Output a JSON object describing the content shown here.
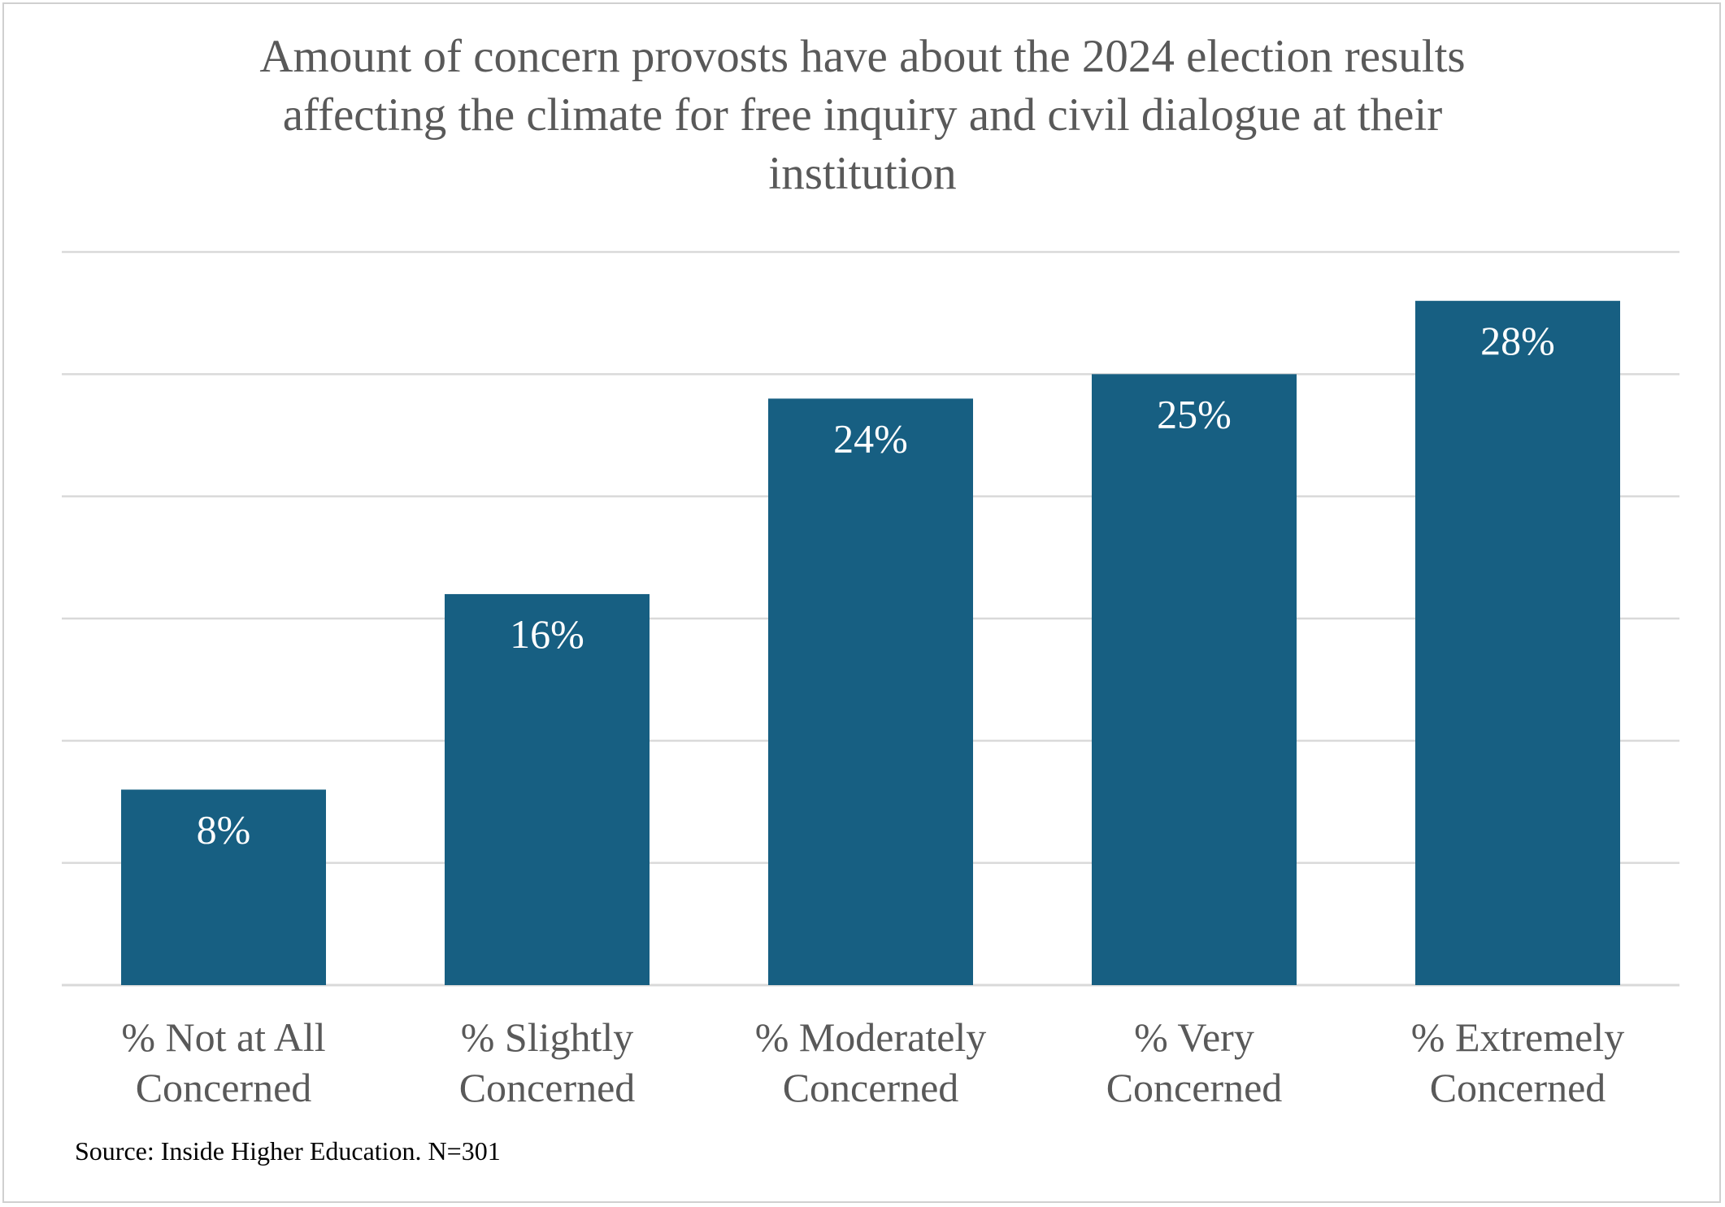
{
  "chart_data": {
    "type": "bar",
    "title": "Amount of concern provosts have about the 2024 election results affecting the climate for free inquiry and civil dialogue at their institution",
    "title_lines": [
      "Amount of concern provosts have about the 2024 election results",
      "affecting the climate for free inquiry and civil dialogue at their",
      "institution"
    ],
    "xlabel": "",
    "ylabel": "",
    "categories": [
      "% Not at All Concerned",
      "% Slightly Concerned",
      "% Moderately Concerned",
      "% Very Concerned",
      "% Extremely Concerned"
    ],
    "category_lines": [
      [
        "% Not at All",
        "Concerned"
      ],
      [
        "% Slightly",
        "Concerned"
      ],
      [
        "% Moderately",
        "Concerned"
      ],
      [
        "% Very",
        "Concerned"
      ],
      [
        "% Extremely",
        "Concerned"
      ]
    ],
    "values": [
      8,
      16,
      24,
      25,
      28
    ],
    "data_labels": [
      "8%",
      "16%",
      "24%",
      "25%",
      "28%"
    ],
    "ylim": [
      0,
      30
    ],
    "grid": true,
    "y_axis_visible": false,
    "legend": "none",
    "colors": {
      "bar": "#175f82",
      "gridline": "#d9d9d9",
      "title": "#595959",
      "category_label": "#595959",
      "data_label": "#ffffff"
    }
  },
  "source_note": "Source: Inside Higher Education. N=301"
}
